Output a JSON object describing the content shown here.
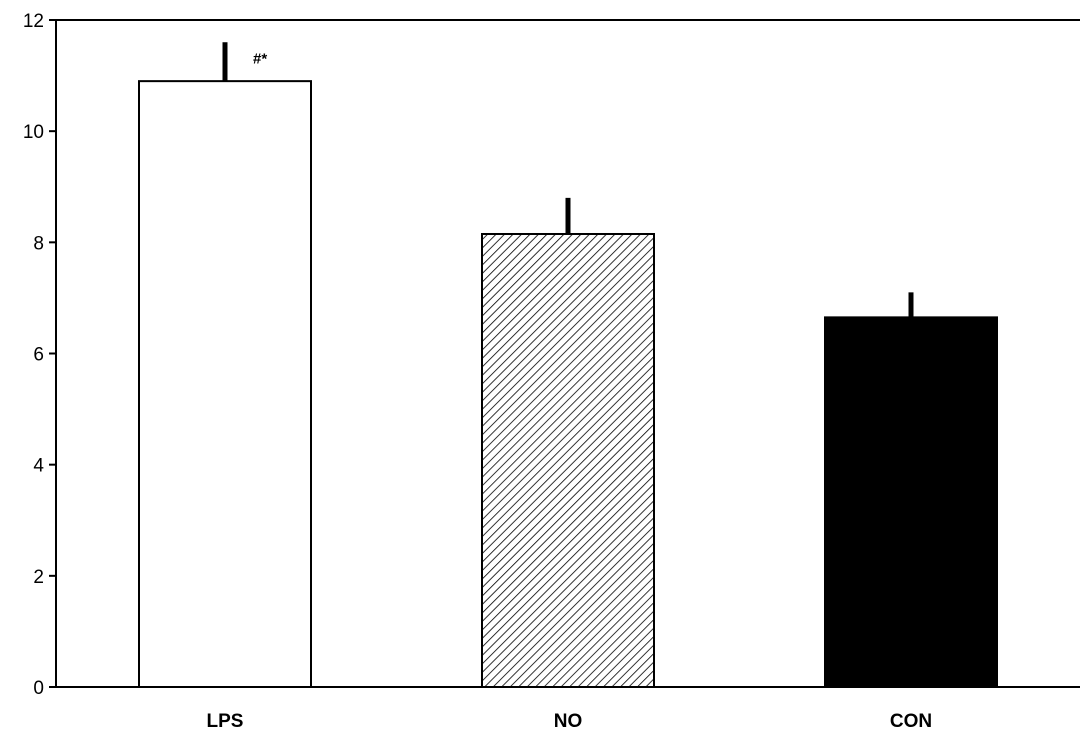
{
  "chart_data": {
    "type": "bar",
    "title": "",
    "xlabel": "",
    "ylabel": "",
    "categories": [
      "LPS",
      "NO",
      "CON"
    ],
    "values": [
      10.9,
      8.15,
      6.65
    ],
    "errors": [
      0.7,
      0.65,
      0.45
    ],
    "fills": [
      "white",
      "hatched",
      "black"
    ],
    "ylim": [
      0,
      12
    ],
    "yticks": [
      "0",
      "2",
      "4",
      "6",
      "8",
      "10",
      "12"
    ],
    "grid": false,
    "legend": "none",
    "annotations": [
      {
        "category": "LPS",
        "text": "#*"
      }
    ],
    "colors": {
      "axis": "#000000",
      "bar_stroke": "#000000",
      "bar_white": "#ffffff",
      "bar_black": "#000000",
      "hatch": "#000000"
    }
  }
}
